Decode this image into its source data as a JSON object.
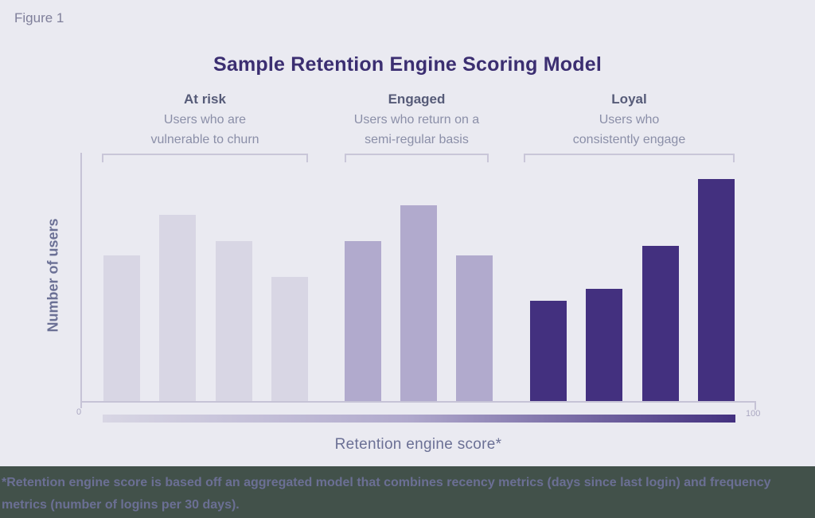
{
  "figure_label": "Figure 1",
  "chart_data": {
    "type": "bar",
    "title": "Sample Retention Engine Scoring Model",
    "xlabel": "Retention engine score*",
    "ylabel": "Number of users",
    "x_axis_range": [
      0,
      100
    ],
    "x_axis_ticks": [
      "0",
      "100"
    ],
    "y_axis_note": "y-axis unlabeled; values are bar heights as percent of plot height",
    "legend_position": "none",
    "grid": false,
    "groups": [
      {
        "label": "At risk",
        "sub_lines": [
          "Users who are",
          "vulnerable to churn"
        ],
        "description": "Users who are vulnerable to churn",
        "color": "#d8d6e4",
        "values": [
          61,
          78,
          67,
          52
        ]
      },
      {
        "label": "Engaged",
        "sub_lines": [
          "Users who return on a",
          "semi-regular basis"
        ],
        "description": "Users who return on a semi-regular basis",
        "color": "#b1aacd",
        "values": [
          67,
          82,
          61
        ]
      },
      {
        "label": "Loyal",
        "sub_lines": [
          "Users who",
          "consistently engage"
        ],
        "description": "Users who consistently engage",
        "color": "#43307f",
        "values": [
          42,
          47,
          65,
          93
        ]
      }
    ]
  },
  "footnote": {
    "lines": [
      "*Retention engine score is based off an aggregated model that combines recency metrics (days since last login) and frequency",
      "metrics (number of logins per 30 days)."
    ]
  },
  "colors": {
    "background": "#eaeaf1",
    "title_text": "#3b2e71",
    "heading_text": "#565b78",
    "subtext": "#8b8fa8",
    "axis_line": "#c6c3d6",
    "axis_label_text": "#6b7095",
    "bar_at_risk": "#d8d6e4",
    "bar_engaged": "#b1aacd",
    "bar_loyal": "#43307f",
    "footnote_background": "#42514a",
    "footnote_text": "#6b6f94"
  }
}
